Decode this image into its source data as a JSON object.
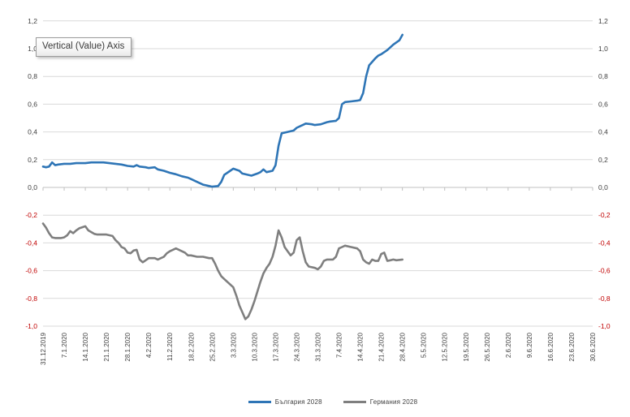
{
  "tooltip": {
    "text": "Vertical (Value) Axis"
  },
  "colors": {
    "gridline": "#d9d9d9",
    "zero_axis": "#c0c0c0",
    "tick_mark": "#bfbfbf",
    "label_dark": "#404040",
    "label_negative_red": "#c00000",
    "series_bulgaria": "#2e75b6",
    "series_germany": "#7f7f7f"
  },
  "chart_data": {
    "type": "line",
    "title": "",
    "xlabel": "",
    "ylabel": "",
    "grid": true,
    "legend_position": "bottom",
    "ylim": [
      -1.0,
      1.2
    ],
    "x_unit": "days since 31.12.2019, weekly ticks to 30.6.2020",
    "x_days_range": [
      0,
      182
    ],
    "y_ticks": [
      {
        "label": "1,2",
        "value": 1.2,
        "red": false
      },
      {
        "label": "1,0",
        "value": 1.0,
        "red": false
      },
      {
        "label": "0,8",
        "value": 0.8,
        "red": false
      },
      {
        "label": "0,6",
        "value": 0.6,
        "red": false
      },
      {
        "label": "0,4",
        "value": 0.4,
        "red": false
      },
      {
        "label": "0,2",
        "value": 0.2,
        "red": false
      },
      {
        "label": "0,0",
        "value": 0.0,
        "red": false
      },
      {
        "label": "-0,2",
        "value": -0.2,
        "red": true
      },
      {
        "label": "-0,4",
        "value": -0.4,
        "red": true
      },
      {
        "label": "-0,6",
        "value": -0.6,
        "red": true
      },
      {
        "label": "-0,8",
        "value": -0.8,
        "red": true
      },
      {
        "label": "-1,0",
        "value": -1.0,
        "red": true
      }
    ],
    "x_tick_labels": [
      "31.12.2019",
      "7.1.2020",
      "14.1.2020",
      "21.1.2020",
      "28.1.2020",
      "4.2.2020",
      "11.2.2020",
      "18.2.2020",
      "25.2.2020",
      "3.3.2020",
      "10.3.2020",
      "17.3.2020",
      "24.3.2020",
      "31.3.2020",
      "7.4.2020",
      "14.4.2020",
      "21.4.2020",
      "28.4.2020",
      "5.5.2020",
      "12.5.2020",
      "19.5.2020",
      "26.5.2020",
      "2.6.2020",
      "9.6.2020",
      "16.6.2020",
      "23.6.2020",
      "30.6.2020"
    ],
    "series": [
      {
        "name": "България 2028",
        "color": "#2e75b6",
        "points": [
          [
            0,
            0.15
          ],
          [
            1,
            0.145
          ],
          [
            2,
            0.15
          ],
          [
            3,
            0.18
          ],
          [
            4,
            0.16
          ],
          [
            5,
            0.165
          ],
          [
            7,
            0.17
          ],
          [
            9,
            0.17
          ],
          [
            11,
            0.175
          ],
          [
            14,
            0.175
          ],
          [
            16,
            0.18
          ],
          [
            18,
            0.18
          ],
          [
            20,
            0.18
          ],
          [
            22,
            0.175
          ],
          [
            24,
            0.17
          ],
          [
            26,
            0.165
          ],
          [
            28,
            0.155
          ],
          [
            30,
            0.15
          ],
          [
            31,
            0.16
          ],
          [
            32,
            0.15
          ],
          [
            34,
            0.145
          ],
          [
            35,
            0.14
          ],
          [
            37,
            0.145
          ],
          [
            38,
            0.13
          ],
          [
            40,
            0.12
          ],
          [
            42,
            0.105
          ],
          [
            44,
            0.095
          ],
          [
            46,
            0.08
          ],
          [
            48,
            0.07
          ],
          [
            49,
            0.06
          ],
          [
            51,
            0.04
          ],
          [
            53,
            0.02
          ],
          [
            55,
            0.01
          ],
          [
            56,
            0.005
          ],
          [
            58,
            0.01
          ],
          [
            59,
            0.04
          ],
          [
            60,
            0.09
          ],
          [
            62,
            0.12
          ],
          [
            63,
            0.135
          ],
          [
            65,
            0.12
          ],
          [
            66,
            0.1
          ],
          [
            68,
            0.09
          ],
          [
            69,
            0.085
          ],
          [
            71,
            0.1
          ],
          [
            72,
            0.11
          ],
          [
            73,
            0.13
          ],
          [
            74,
            0.11
          ],
          [
            76,
            0.12
          ],
          [
            77,
            0.16
          ],
          [
            78,
            0.3
          ],
          [
            79,
            0.39
          ],
          [
            81,
            0.4
          ],
          [
            83,
            0.41
          ],
          [
            84,
            0.43
          ],
          [
            86,
            0.45
          ],
          [
            87,
            0.46
          ],
          [
            89,
            0.455
          ],
          [
            90,
            0.45
          ],
          [
            92,
            0.455
          ],
          [
            94,
            0.47
          ],
          [
            95,
            0.475
          ],
          [
            97,
            0.48
          ],
          [
            98,
            0.5
          ],
          [
            99,
            0.6
          ],
          [
            100,
            0.615
          ],
          [
            102,
            0.62
          ],
          [
            104,
            0.625
          ],
          [
            105,
            0.63
          ],
          [
            106,
            0.68
          ],
          [
            107,
            0.8
          ],
          [
            108,
            0.88
          ],
          [
            110,
            0.93
          ],
          [
            111,
            0.95
          ],
          [
            112,
            0.96
          ],
          [
            114,
            0.99
          ],
          [
            115,
            1.01
          ],
          [
            116,
            1.03
          ],
          [
            118,
            1.06
          ],
          [
            119,
            1.1
          ]
        ]
      },
      {
        "name": "Германия 2028",
        "color": "#7f7f7f",
        "points": [
          [
            0,
            -0.26
          ],
          [
            1,
            -0.29
          ],
          [
            2,
            -0.33
          ],
          [
            3,
            -0.36
          ],
          [
            4,
            -0.365
          ],
          [
            6,
            -0.365
          ],
          [
            7,
            -0.36
          ],
          [
            8,
            -0.345
          ],
          [
            9,
            -0.315
          ],
          [
            10,
            -0.33
          ],
          [
            11,
            -0.31
          ],
          [
            12,
            -0.295
          ],
          [
            14,
            -0.28
          ],
          [
            15,
            -0.31
          ],
          [
            17,
            -0.335
          ],
          [
            18,
            -0.34
          ],
          [
            20,
            -0.34
          ],
          [
            21,
            -0.34
          ],
          [
            23,
            -0.35
          ],
          [
            24,
            -0.38
          ],
          [
            25,
            -0.4
          ],
          [
            26,
            -0.43
          ],
          [
            27,
            -0.44
          ],
          [
            28,
            -0.47
          ],
          [
            29,
            -0.475
          ],
          [
            30,
            -0.455
          ],
          [
            31,
            -0.45
          ],
          [
            32,
            -0.52
          ],
          [
            33,
            -0.54
          ],
          [
            34,
            -0.525
          ],
          [
            35,
            -0.51
          ],
          [
            37,
            -0.51
          ],
          [
            38,
            -0.52
          ],
          [
            40,
            -0.5
          ],
          [
            41,
            -0.475
          ],
          [
            42,
            -0.46
          ],
          [
            44,
            -0.44
          ],
          [
            45,
            -0.45
          ],
          [
            47,
            -0.47
          ],
          [
            48,
            -0.49
          ],
          [
            49,
            -0.49
          ],
          [
            51,
            -0.5
          ],
          [
            53,
            -0.5
          ],
          [
            55,
            -0.51
          ],
          [
            56,
            -0.51
          ],
          [
            57,
            -0.55
          ],
          [
            58,
            -0.6
          ],
          [
            59,
            -0.64
          ],
          [
            60,
            -0.66
          ],
          [
            62,
            -0.7
          ],
          [
            63,
            -0.72
          ],
          [
            64,
            -0.78
          ],
          [
            65,
            -0.85
          ],
          [
            66,
            -0.9
          ],
          [
            67,
            -0.95
          ],
          [
            68,
            -0.93
          ],
          [
            69,
            -0.88
          ],
          [
            70,
            -0.82
          ],
          [
            71,
            -0.75
          ],
          [
            72,
            -0.68
          ],
          [
            73,
            -0.62
          ],
          [
            74,
            -0.58
          ],
          [
            75,
            -0.55
          ],
          [
            76,
            -0.5
          ],
          [
            77,
            -0.42
          ],
          [
            78,
            -0.31
          ],
          [
            79,
            -0.36
          ],
          [
            80,
            -0.43
          ],
          [
            81,
            -0.46
          ],
          [
            82,
            -0.49
          ],
          [
            83,
            -0.47
          ],
          [
            84,
            -0.38
          ],
          [
            85,
            -0.36
          ],
          [
            86,
            -0.46
          ],
          [
            87,
            -0.54
          ],
          [
            88,
            -0.57
          ],
          [
            90,
            -0.58
          ],
          [
            91,
            -0.59
          ],
          [
            92,
            -0.57
          ],
          [
            93,
            -0.53
          ],
          [
            94,
            -0.52
          ],
          [
            96,
            -0.52
          ],
          [
            97,
            -0.5
          ],
          [
            98,
            -0.44
          ],
          [
            99,
            -0.43
          ],
          [
            100,
            -0.42
          ],
          [
            102,
            -0.43
          ],
          [
            104,
            -0.44
          ],
          [
            105,
            -0.46
          ],
          [
            106,
            -0.52
          ],
          [
            107,
            -0.54
          ],
          [
            108,
            -0.55
          ],
          [
            109,
            -0.52
          ],
          [
            110,
            -0.53
          ],
          [
            111,
            -0.53
          ],
          [
            112,
            -0.48
          ],
          [
            113,
            -0.47
          ],
          [
            114,
            -0.53
          ],
          [
            115,
            -0.525
          ],
          [
            116,
            -0.52
          ],
          [
            117,
            -0.525
          ],
          [
            119,
            -0.52
          ]
        ]
      }
    ]
  }
}
